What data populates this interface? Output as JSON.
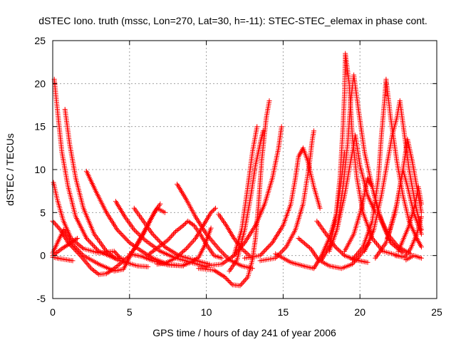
{
  "chart_data": {
    "type": "scatter",
    "title": "dSTEC Iono. truth (mssc, Lon=270, Lat=30, h=-11): STEC-STEC_elemax in phase cont.",
    "xlabel": "GPS time / hours of day 241 of year 2006",
    "ylabel": "dSTEC  / TECUs",
    "xlim": [
      0,
      25
    ],
    "ylim": [
      -5,
      25
    ],
    "x_ticks": [
      "0",
      "5",
      "10",
      "15",
      "20",
      "25"
    ],
    "y_ticks": [
      "-5",
      "0",
      "5",
      "10",
      "15",
      "20",
      "25"
    ],
    "grid": true,
    "marker": "+",
    "color": "#ff0000",
    "series": [
      {
        "points": [
          [
            0.05,
            8.5
          ],
          [
            0.3,
            6.5
          ],
          [
            0.7,
            4
          ],
          [
            1.2,
            2
          ],
          [
            2,
            0.8
          ],
          [
            3,
            0.3
          ],
          [
            4,
            0.5
          ],
          [
            4.4,
            -0.3
          ]
        ]
      },
      {
        "points": [
          [
            0.1,
            20.5
          ],
          [
            0.3,
            17
          ],
          [
            0.6,
            12
          ],
          [
            1,
            8
          ],
          [
            1.5,
            4.5
          ],
          [
            2.2,
            2
          ],
          [
            3,
            0.5
          ],
          [
            4,
            -0.3
          ],
          [
            4.6,
            -0.4
          ]
        ]
      },
      {
        "points": [
          [
            0.8,
            17
          ],
          [
            1.1,
            13
          ],
          [
            1.5,
            9
          ],
          [
            2,
            5.5
          ],
          [
            2.7,
            2.5
          ],
          [
            3.5,
            0.5
          ],
          [
            4.2,
            -0.5
          ],
          [
            5.5,
            -1.2
          ],
          [
            6.2,
            -1.3
          ]
        ]
      },
      {
        "points": [
          [
            2.2,
            9.8
          ],
          [
            2.8,
            7.5
          ],
          [
            3.5,
            5
          ],
          [
            4.2,
            3
          ],
          [
            5,
            1.5
          ],
          [
            5.8,
            0.5
          ],
          [
            6.5,
            -0.3
          ],
          [
            7.5,
            -1
          ],
          [
            8.5,
            -1.2
          ]
        ]
      },
      {
        "points": [
          [
            4.1,
            6.3
          ],
          [
            4.7,
            4.5
          ],
          [
            5.3,
            3
          ],
          [
            6,
            1.8
          ],
          [
            7,
            0.5
          ],
          [
            8,
            -0.3
          ],
          [
            9,
            -0.8
          ],
          [
            10,
            -1.3
          ]
        ]
      },
      {
        "points": [
          [
            5.3,
            5.5
          ],
          [
            5.9,
            4
          ],
          [
            6.5,
            2.5
          ],
          [
            7.3,
            1
          ],
          [
            8.2,
            0
          ],
          [
            9.2,
            -0.5
          ],
          [
            10.2,
            -1
          ]
        ]
      },
      {
        "points": [
          [
            8.1,
            8.3
          ],
          [
            8.7,
            6.5
          ],
          [
            9.3,
            4.5
          ],
          [
            10,
            2.5
          ],
          [
            10.8,
            0.8
          ],
          [
            11.5,
            -0.5
          ],
          [
            12.3,
            -1.2
          ],
          [
            13,
            -1.5
          ]
        ]
      },
      {
        "points": [
          [
            0,
            4
          ],
          [
            0.5,
            3
          ],
          [
            1,
            1.5
          ],
          [
            1.8,
            0
          ],
          [
            2.5,
            -1.5
          ],
          [
            3,
            -2.2
          ],
          [
            3.5,
            -2.1
          ],
          [
            4,
            -1.5
          ],
          [
            4.5,
            -0.8
          ],
          [
            5,
            0
          ],
          [
            5.6,
            1.5
          ],
          [
            6.2,
            3.5
          ],
          [
            6.6,
            5
          ],
          [
            7,
            6
          ]
        ]
      },
      {
        "points": [
          [
            0,
            0
          ],
          [
            0.6,
            0.8
          ],
          [
            1.2,
            1.5
          ],
          [
            1.6,
            2
          ]
        ]
      },
      {
        "points": [
          [
            0,
            -0.2
          ],
          [
            0.6,
            -0.4
          ],
          [
            1.3,
            -0.6
          ]
        ]
      },
      {
        "points": [
          [
            0,
            0.3
          ],
          [
            0.7,
            3
          ],
          [
            1.2,
            1.5
          ],
          [
            2,
            0
          ],
          [
            3,
            -1
          ],
          [
            4,
            -1.8
          ],
          [
            4.6,
            -1.6
          ],
          [
            5.2,
            0.5
          ],
          [
            5.8,
            2.3
          ],
          [
            6.3,
            4
          ],
          [
            6.8,
            5.5
          ],
          [
            7.3,
            5
          ]
        ]
      },
      {
        "points": [
          [
            5,
            0.2
          ],
          [
            5.8,
            -0.1
          ],
          [
            6.5,
            -0.6
          ],
          [
            7.5,
            -1.1
          ],
          [
            8.4,
            -1.2
          ],
          [
            9,
            -0.8
          ],
          [
            9.5,
            -0.2
          ],
          [
            9.9,
            1.2
          ],
          [
            10.3,
            3.2
          ]
        ]
      },
      {
        "points": [
          [
            6.8,
            -1
          ],
          [
            7.3,
            -0.9
          ],
          [
            8,
            -0.3
          ],
          [
            8.7,
            0.8
          ],
          [
            9.3,
            2
          ],
          [
            9.8,
            3.5
          ],
          [
            10.3,
            5
          ],
          [
            10.6,
            5.5
          ]
        ]
      },
      {
        "points": [
          [
            6.3,
            0.2
          ],
          [
            6.9,
            1
          ],
          [
            7.5,
            1.8
          ],
          [
            8,
            2.8
          ],
          [
            8.5,
            3.5
          ],
          [
            8.8,
            4
          ],
          [
            9.2,
            3.5
          ],
          [
            9.6,
            2.5
          ],
          [
            10,
            1.3
          ],
          [
            10.5,
            0
          ],
          [
            11,
            -0.3
          ]
        ]
      },
      {
        "points": [
          [
            10.8,
            4.8
          ],
          [
            11.3,
            3.5
          ],
          [
            11.8,
            2
          ],
          [
            12.3,
            0.8
          ],
          [
            12.8,
            0
          ]
        ]
      },
      {
        "points": [
          [
            9.5,
            -1.5
          ],
          [
            10.5,
            -1.7
          ],
          [
            11.2,
            -2.5
          ],
          [
            11.7,
            -3.4
          ],
          [
            12.2,
            -3.5
          ],
          [
            12.7,
            -2.5
          ],
          [
            13,
            -0.5
          ],
          [
            13.2,
            2
          ],
          [
            13.4,
            6
          ],
          [
            13.6,
            11
          ],
          [
            13.9,
            16
          ],
          [
            14.1,
            18
          ]
        ]
      },
      {
        "points": [
          [
            10,
            -1.2
          ],
          [
            11,
            -1
          ],
          [
            11.8,
            0
          ],
          [
            12.3,
            3
          ],
          [
            12.7,
            8
          ],
          [
            13,
            12
          ],
          [
            13.3,
            15
          ]
        ]
      },
      {
        "points": [
          [
            11.5,
            -1.8
          ],
          [
            12,
            -0.5
          ],
          [
            12.5,
            3
          ],
          [
            12.9,
            7
          ],
          [
            13.2,
            10.5
          ],
          [
            13.5,
            13
          ],
          [
            13.7,
            14.5
          ]
        ]
      },
      {
        "points": [
          [
            11.8,
            0
          ],
          [
            12.5,
            1.5
          ],
          [
            13.2,
            3.5
          ],
          [
            13.8,
            6
          ],
          [
            14.3,
            9
          ],
          [
            14.7,
            12.5
          ],
          [
            14.9,
            15
          ]
        ]
      },
      {
        "points": [
          [
            12.5,
            -0.3
          ],
          [
            13.5,
            0
          ],
          [
            14.3,
            1.5
          ],
          [
            15,
            3.5
          ],
          [
            15.5,
            6
          ],
          [
            15.8,
            9
          ],
          [
            16,
            11.5
          ],
          [
            16.3,
            12.5
          ],
          [
            16.6,
            11
          ],
          [
            17,
            8
          ],
          [
            17.4,
            5.5
          ]
        ]
      },
      {
        "points": [
          [
            13.5,
            -0.6
          ],
          [
            14.5,
            -0.3
          ],
          [
            15.2,
            1
          ],
          [
            15.8,
            3
          ],
          [
            16.3,
            6
          ],
          [
            16.7,
            10.5
          ],
          [
            16.9,
            13.5
          ],
          [
            17,
            14.5
          ]
        ]
      },
      {
        "points": [
          [
            14.5,
            0.2
          ],
          [
            15.5,
            -0.8
          ],
          [
            16.3,
            -1.2
          ],
          [
            17,
            -1.5
          ],
          [
            17.5,
            0
          ],
          [
            18,
            2
          ],
          [
            18.5,
            5
          ],
          [
            18.8,
            9
          ],
          [
            19,
            12
          ]
        ]
      },
      {
        "points": [
          [
            16,
            2
          ],
          [
            16.8,
            0.8
          ],
          [
            17.3,
            -0.5
          ],
          [
            18,
            -1.2
          ],
          [
            18.8,
            -1.5
          ],
          [
            19.5,
            -1
          ],
          [
            20,
            0
          ],
          [
            20.6,
            1.5
          ]
        ]
      },
      {
        "points": [
          [
            17.2,
            4
          ],
          [
            17.8,
            2.5
          ],
          [
            18.4,
            1
          ],
          [
            19,
            0
          ],
          [
            19.7,
            -0.5
          ],
          [
            20.5,
            -0.8
          ]
        ]
      },
      {
        "points": [
          [
            17.5,
            -0.5
          ],
          [
            18,
            1
          ],
          [
            18.4,
            4
          ],
          [
            18.7,
            9
          ],
          [
            18.9,
            15
          ],
          [
            19,
            19
          ],
          [
            19.05,
            23.5
          ],
          [
            19.3,
            20
          ],
          [
            19.5,
            14
          ],
          [
            19.8,
            9
          ],
          [
            20.2,
            5
          ],
          [
            20.8,
            2
          ],
          [
            21.5,
            0.5
          ],
          [
            22.5,
            0
          ]
        ]
      },
      {
        "points": [
          [
            18,
            0.5
          ],
          [
            18.5,
            3
          ],
          [
            18.9,
            8
          ],
          [
            19.2,
            13
          ],
          [
            19.4,
            18
          ],
          [
            19.6,
            21
          ],
          [
            19.9,
            17
          ],
          [
            20.3,
            12
          ],
          [
            20.8,
            8
          ],
          [
            21.4,
            4
          ],
          [
            22,
            1.5
          ],
          [
            22.8,
            0.3
          ]
        ]
      },
      {
        "points": [
          [
            18.5,
            3
          ],
          [
            19,
            7
          ],
          [
            19.4,
            11
          ],
          [
            19.7,
            14
          ],
          [
            20,
            10.5
          ],
          [
            20.5,
            7
          ],
          [
            21,
            5
          ]
        ]
      },
      {
        "points": [
          [
            19,
            0.5
          ],
          [
            19.6,
            2.5
          ],
          [
            20.1,
            5.5
          ],
          [
            20.5,
            9
          ],
          [
            20.8,
            8
          ],
          [
            21.2,
            5
          ],
          [
            21.8,
            2.5
          ],
          [
            22.5,
            1
          ],
          [
            23.3,
            0.2
          ]
        ]
      },
      {
        "points": [
          [
            19.5,
            -0.5
          ],
          [
            20.2,
            1
          ],
          [
            20.8,
            4
          ],
          [
            21.2,
            9
          ],
          [
            21.4,
            14
          ],
          [
            21.6,
            18
          ],
          [
            21.7,
            20.5
          ],
          [
            22,
            16
          ],
          [
            22.4,
            11
          ],
          [
            22.8,
            7
          ],
          [
            23.2,
            4
          ],
          [
            23.7,
            2
          ],
          [
            24,
            1
          ]
        ]
      },
      {
        "points": [
          [
            20.3,
            0.5
          ],
          [
            20.9,
            3
          ],
          [
            21.4,
            7
          ],
          [
            21.8,
            11
          ],
          [
            22.1,
            14
          ],
          [
            22.4,
            16
          ],
          [
            22.6,
            18
          ],
          [
            22.9,
            14
          ],
          [
            23.2,
            10
          ],
          [
            23.6,
            6
          ],
          [
            24,
            3
          ]
        ]
      },
      {
        "points": [
          [
            21,
            -0.3
          ],
          [
            21.7,
            1.5
          ],
          [
            22.3,
            5
          ],
          [
            22.8,
            10
          ],
          [
            23.1,
            13.5
          ],
          [
            23.4,
            11
          ],
          [
            23.8,
            7
          ],
          [
            24,
            5
          ]
        ]
      },
      {
        "points": [
          [
            21.8,
            2
          ],
          [
            22.4,
            6
          ],
          [
            22.8,
            10
          ],
          [
            23.1,
            8
          ],
          [
            23.5,
            5
          ],
          [
            24,
            2.5
          ]
        ]
      },
      {
        "points": [
          [
            22.3,
            0
          ],
          [
            22.9,
            -0.2
          ],
          [
            23.3,
            0.8
          ],
          [
            23.7,
            2.5
          ],
          [
            24,
            4.5
          ]
        ]
      },
      {
        "points": [
          [
            23,
            -0.5
          ],
          [
            23.5,
            0
          ],
          [
            24,
            -0.3
          ]
        ]
      },
      {
        "points": [
          [
            22.5,
            0.5
          ],
          [
            23.2,
            3.5
          ],
          [
            23.6,
            6
          ],
          [
            23.8,
            8
          ],
          [
            24,
            6
          ]
        ]
      }
    ]
  }
}
